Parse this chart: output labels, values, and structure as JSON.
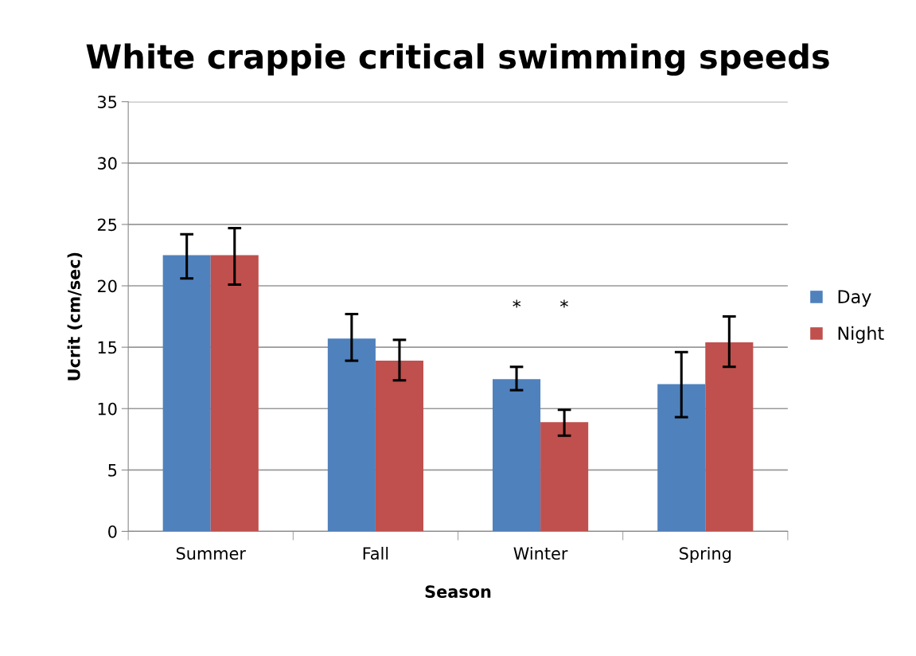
{
  "chart_data": {
    "type": "bar",
    "title": "White crappie critical swimming speeds",
    "xlabel": "Season",
    "ylabel": "Ucrit (cm/sec)",
    "categories": [
      "Summer",
      "Fall",
      "Winter",
      "Spring"
    ],
    "series": [
      {
        "name": "Day",
        "color": "#4f81bd",
        "values": [
          22.5,
          15.7,
          12.4,
          12.0
        ],
        "errors": [
          [
            20.6,
            24.2
          ],
          [
            13.9,
            17.7
          ],
          [
            11.5,
            13.4
          ],
          [
            9.3,
            14.6
          ]
        ]
      },
      {
        "name": "Night",
        "color": "#c0504d",
        "values": [
          22.5,
          13.9,
          8.9,
          15.4
        ],
        "errors": [
          [
            20.1,
            24.7
          ],
          [
            12.3,
            15.6
          ],
          [
            7.8,
            9.9
          ],
          [
            13.4,
            17.5
          ]
        ]
      }
    ],
    "ylim": [
      0,
      35
    ],
    "yticks": [
      0,
      5,
      10,
      15,
      20,
      25,
      30,
      35
    ],
    "grid": "y",
    "legend": "right",
    "annotations": [
      "*",
      "*"
    ]
  }
}
